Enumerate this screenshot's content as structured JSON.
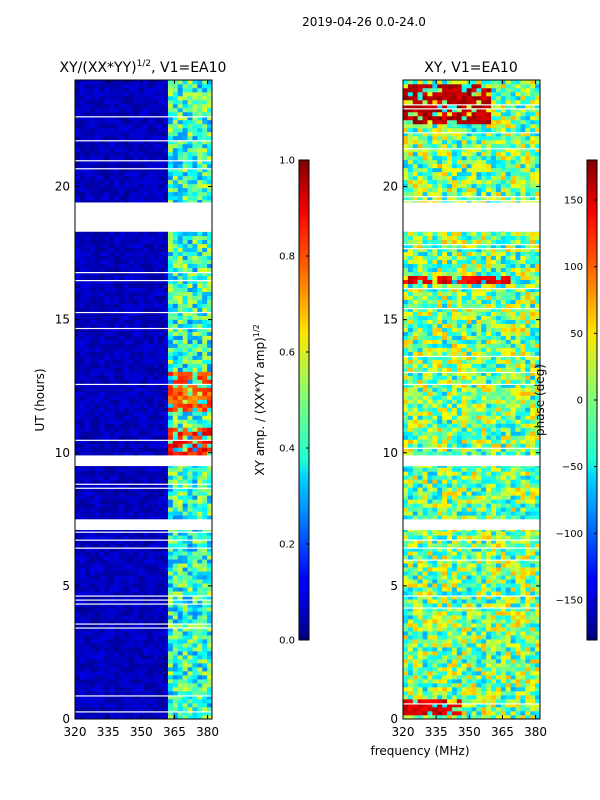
{
  "suptitle": "2019-04-26 0.0-24.0",
  "chart_data": [
    {
      "type": "heatmap",
      "title_main": "XY/(XX*YY)",
      "title_exp": "1/2",
      "title_tail": ", V1=EA10",
      "xlabel": "",
      "ylabel": "UT (hours)",
      "xlim": [
        320,
        382
      ],
      "ylim": [
        0,
        24
      ],
      "xticks": [
        320,
        335,
        350,
        365,
        380
      ],
      "yticks": [
        0,
        5,
        10,
        15,
        20
      ],
      "colormap": "jet",
      "colorbar": {
        "label_main": "XY amp. / (XX*YY amp)",
        "label_exp": "1/2",
        "range": [
          0.0,
          1.0
        ],
        "ticks": [
          {
            "value": 0.0,
            "label": "0.0"
          },
          {
            "value": 0.2,
            "label": "0.2"
          },
          {
            "value": 0.4,
            "label": "0.4"
          },
          {
            "value": 0.6,
            "label": "0.6"
          },
          {
            "value": 0.8,
            "label": "0.8"
          },
          {
            "value": 1.0,
            "label": "1.0"
          }
        ]
      },
      "flagged_ut_ranges": [
        [
          18.3,
          19.4
        ],
        [
          9.5,
          9.9
        ],
        [
          7.1,
          7.5
        ]
      ],
      "high_amplitude_band_mhz": [
        362,
        381
      ],
      "peak_features": [
        {
          "ut_range": [
            9.6,
            11.0
          ],
          "mhz_range": [
            362,
            380
          ],
          "value": 0.85
        },
        {
          "ut_range": [
            11.6,
            13.1
          ],
          "mhz_range": [
            362,
            380
          ],
          "value": 0.78
        },
        {
          "ut_range": [
            22.8,
            23.6
          ],
          "mhz_range": [
            370,
            380
          ],
          "value": 0.5
        }
      ]
    },
    {
      "type": "heatmap",
      "title": "XY, V1=EA10",
      "xlabel": "frequency (MHz)",
      "ylabel": "",
      "xlim": [
        320,
        382
      ],
      "ylim": [
        0,
        24
      ],
      "xticks": [
        320,
        335,
        350,
        365,
        380
      ],
      "yticks": [
        0,
        5,
        10,
        15,
        20
      ],
      "colormap": "jet",
      "colorbar": {
        "label": "phase (deg)",
        "range": [
          -180,
          180
        ],
        "ticks": [
          {
            "value": 150,
            "label": "150"
          },
          {
            "value": 100,
            "label": "100"
          },
          {
            "value": 50,
            "label": "50"
          },
          {
            "value": 0,
            "label": "0"
          },
          {
            "value": -50,
            "label": "−50"
          },
          {
            "value": -100,
            "label": "−100"
          },
          {
            "value": -150,
            "label": "−150"
          }
        ]
      },
      "flagged_ut_ranges": [
        [
          18.3,
          19.4
        ],
        [
          9.5,
          9.9
        ],
        [
          7.1,
          7.5
        ]
      ],
      "phase_features": [
        {
          "ut_range": [
            22.3,
            23.8
          ],
          "mhz_range": [
            320,
            358
          ],
          "value": 160
        },
        {
          "ut_range": [
            16.3,
            16.6
          ],
          "mhz_range": [
            320,
            370
          ],
          "value": 140
        },
        {
          "ut_range": [
            0.1,
            0.8
          ],
          "mhz_range": [
            320,
            345
          ],
          "value": 150
        }
      ]
    }
  ]
}
